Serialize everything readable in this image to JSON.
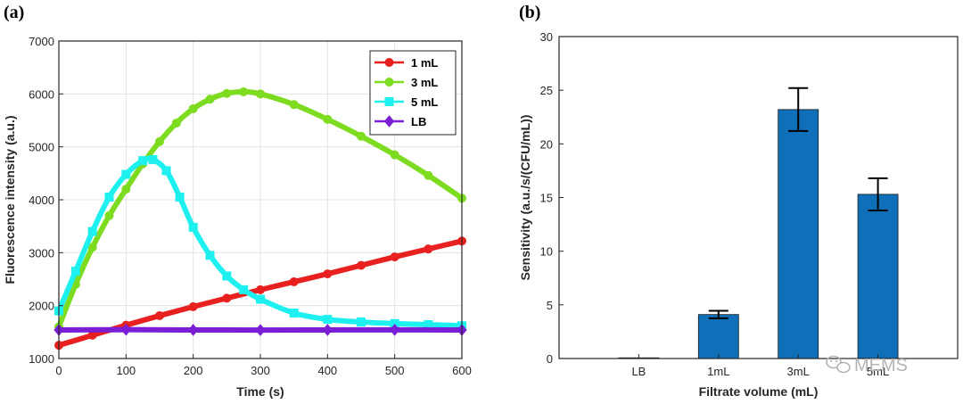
{
  "panels": {
    "a": "(a)",
    "b": "(b)"
  },
  "watermark": "MEMS",
  "chart_data": [
    {
      "type": "line",
      "panel": "(a)",
      "xlabel": "Time (s)",
      "ylabel": "Fluorescence intensity (a.u.)",
      "xlim": [
        0,
        600
      ],
      "ylim": [
        1000,
        7000
      ],
      "xticks": [
        0,
        100,
        200,
        300,
        400,
        500,
        600
      ],
      "yticks": [
        1000,
        2000,
        3000,
        4000,
        5000,
        6000,
        7000
      ],
      "grid": true,
      "legend_position": "top-right",
      "series": [
        {
          "name": "1 mL",
          "color": "#e8201f",
          "marker": "circle",
          "x": [
            0,
            50,
            100,
            150,
            200,
            250,
            300,
            350,
            400,
            450,
            500,
            550,
            600
          ],
          "y": [
            1250,
            1440,
            1630,
            1810,
            1980,
            2140,
            2300,
            2450,
            2600,
            2760,
            2920,
            3070,
            3220
          ]
        },
        {
          "name": "3 mL",
          "color": "#7ddc1f",
          "marker": "circle",
          "x": [
            0,
            25,
            50,
            75,
            100,
            125,
            150,
            175,
            200,
            225,
            250,
            275,
            300,
            350,
            400,
            450,
            500,
            550,
            600
          ],
          "y": [
            1600,
            2400,
            3100,
            3700,
            4200,
            4680,
            5100,
            5450,
            5720,
            5900,
            6010,
            6040,
            6000,
            5800,
            5520,
            5200,
            4850,
            4460,
            4030
          ]
        },
        {
          "name": "5 mL",
          "color": "#1ef0f0",
          "marker": "square",
          "x": [
            0,
            25,
            50,
            75,
            100,
            125,
            140,
            160,
            180,
            200,
            225,
            250,
            275,
            300,
            350,
            400,
            450,
            500,
            550,
            600
          ],
          "y": [
            1900,
            2650,
            3400,
            4050,
            4480,
            4740,
            4760,
            4550,
            4050,
            3480,
            2950,
            2560,
            2300,
            2120,
            1860,
            1740,
            1690,
            1660,
            1640,
            1620
          ]
        },
        {
          "name": "LB",
          "color": "#7a1fd6",
          "marker": "diamond",
          "x": [
            0,
            100,
            200,
            300,
            400,
            500,
            600
          ],
          "y": [
            1540,
            1545,
            1540,
            1538,
            1540,
            1542,
            1540
          ]
        }
      ]
    },
    {
      "type": "bar",
      "panel": "(b)",
      "xlabel": "Filtrate volume (mL)",
      "ylabel": "Sensitivity (a.u./s/(CFU/mL))",
      "ylim": [
        0,
        30
      ],
      "yticks": [
        0,
        5,
        10,
        15,
        20,
        25,
        30
      ],
      "categories": [
        "LB",
        "1mL",
        "3mL",
        "5mL"
      ],
      "values": [
        0,
        4.1,
        23.2,
        15.3
      ],
      "errors": [
        0,
        0.35,
        2.0,
        1.5
      ],
      "bar_color": "#0f6fb8",
      "grid": false
    }
  ]
}
